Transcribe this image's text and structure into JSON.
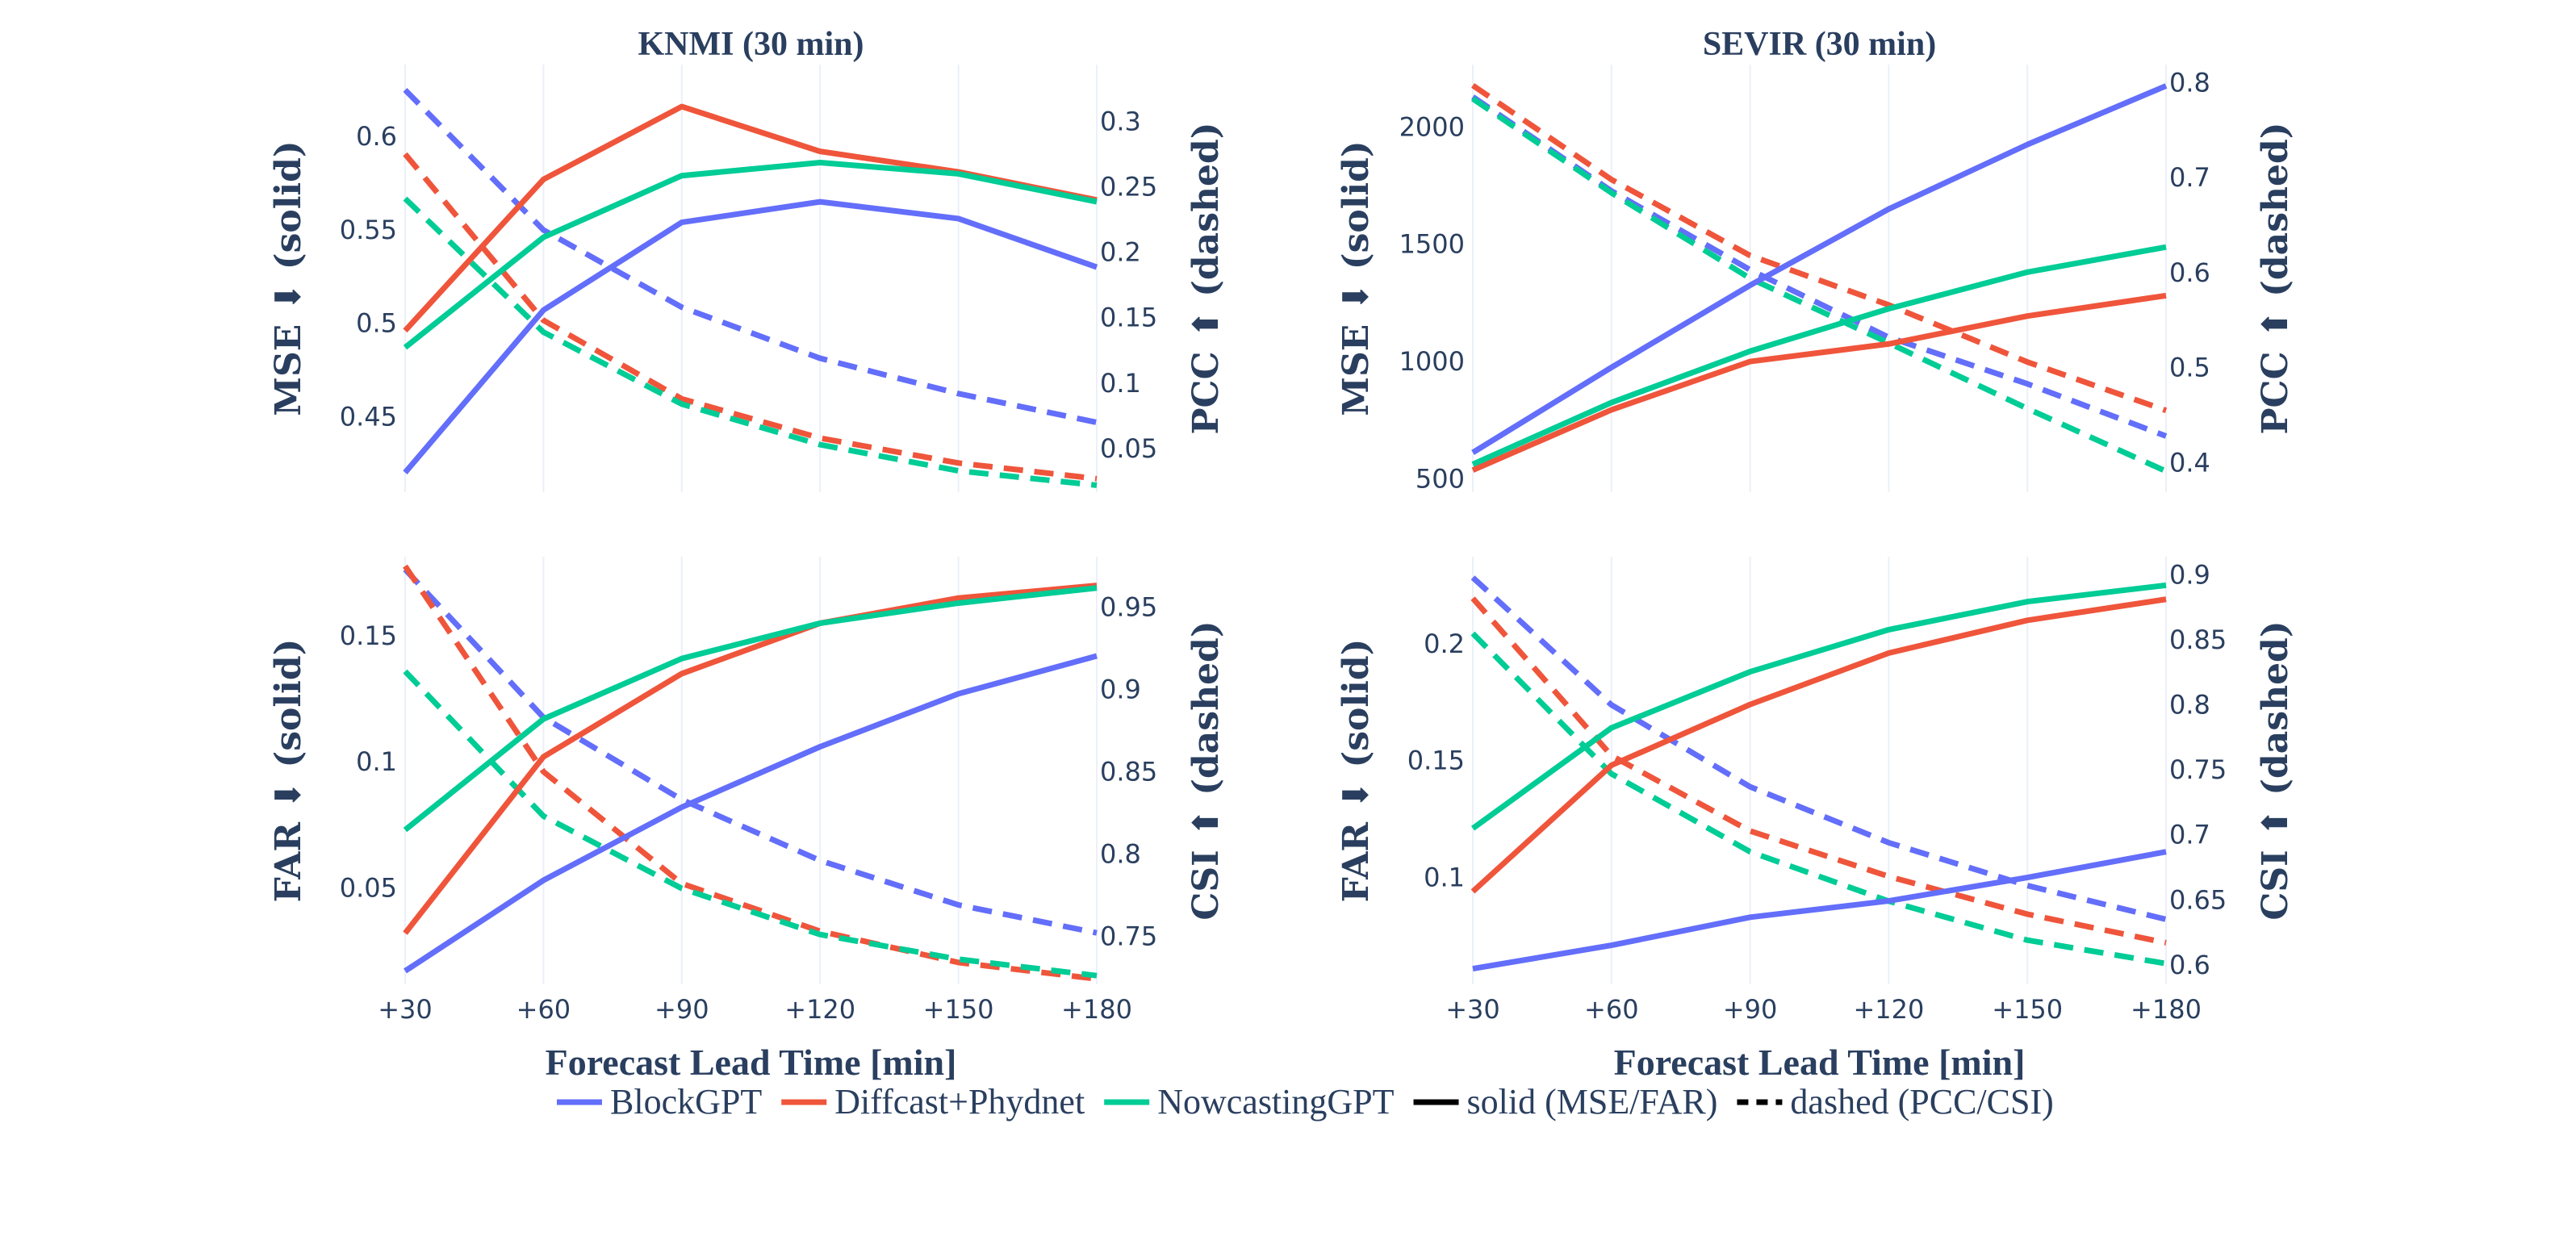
{
  "chart_data": [
    {
      "type": "line",
      "panel": "top-left",
      "title": "KNMI (30 min)",
      "xlabel": "Forecast Lead Time [min]",
      "x": [
        "+30",
        "+60",
        "+90",
        "+120",
        "+150",
        "+180"
      ],
      "ylabel_left": "MSE ⬇ (solid)",
      "ylabel_right": "PCC ⬆ (dashed)",
      "left_ticks": [
        0.45,
        0.5,
        0.55,
        0.6
      ],
      "left_tick_labels": [
        "0.45",
        "0.5",
        "0.55",
        "0.6"
      ],
      "right_ticks": [
        0.05,
        0.1,
        0.15,
        0.2,
        0.25,
        0.3
      ],
      "right_tick_labels": [
        "0.05",
        "0.1",
        "0.15",
        "0.2",
        "0.25",
        "0.3"
      ],
      "ylim_left": [
        0.4095,
        0.6385
      ],
      "ylim_right": [
        0.0167,
        0.3434
      ],
      "series_solid": [
        {
          "name": "BlockGPT",
          "values": [
            0.42,
            0.507,
            0.554,
            0.565,
            0.556,
            0.53
          ]
        },
        {
          "name": "Diffcast+Phydnet",
          "values": [
            0.496,
            0.577,
            0.616,
            0.592,
            0.581,
            0.566
          ]
        },
        {
          "name": "NowcastingGPT",
          "values": [
            0.487,
            0.546,
            0.579,
            0.586,
            0.58,
            0.565
          ]
        }
      ],
      "series_dashed": [
        {
          "name": "BlockGPT",
          "values": [
            0.324,
            0.217,
            0.158,
            0.119,
            0.092,
            0.07
          ]
        },
        {
          "name": "Diffcast+Phydnet",
          "values": [
            0.275,
            0.148,
            0.088,
            0.058,
            0.039,
            0.027
          ]
        },
        {
          "name": "NowcastingGPT",
          "values": [
            0.241,
            0.139,
            0.084,
            0.053,
            0.033,
            0.022
          ]
        }
      ]
    },
    {
      "type": "line",
      "panel": "top-right",
      "title": "SEVIR (30 min)",
      "xlabel": "Forecast Lead Time [min]",
      "x": [
        "+30",
        "+60",
        "+90",
        "+120",
        "+150",
        "+180"
      ],
      "ylabel_left": "MSE ⬇ (solid)",
      "ylabel_right": "PCC ⬆ (dashed)",
      "left_ticks": [
        500,
        1000,
        1500,
        2000
      ],
      "left_tick_labels": [
        "500",
        "1000",
        "1500",
        "2000"
      ],
      "right_ticks": [
        0.4,
        0.5,
        0.6,
        0.7,
        0.8
      ],
      "right_tick_labels": [
        "0.4",
        "0.5",
        "0.6",
        "0.7",
        "0.8"
      ],
      "ylim_left": [
        443,
        2266
      ],
      "ylim_right": [
        0.369,
        0.819
      ],
      "series_solid": [
        {
          "name": "BlockGPT",
          "values": [
            612,
            975,
            1325,
            1650,
            1925,
            2175
          ]
        },
        {
          "name": "Diffcast+Phydnet",
          "values": [
            537,
            794,
            1000,
            1075,
            1194,
            1281
          ]
        },
        {
          "name": "NowcastingGPT",
          "values": [
            562,
            825,
            1044,
            1225,
            1381,
            1488
          ]
        }
      ],
      "series_dashed": [
        {
          "name": "BlockGPT",
          "values": [
            0.785,
            0.686,
            0.603,
            0.532,
            0.483,
            0.428
          ]
        },
        {
          "name": "Diffcast+Phydnet",
          "values": [
            0.797,
            0.698,
            0.618,
            0.566,
            0.506,
            0.455
          ]
        },
        {
          "name": "NowcastingGPT",
          "values": [
            0.783,
            0.684,
            0.594,
            0.526,
            0.457,
            0.391
          ]
        }
      ]
    },
    {
      "type": "line",
      "panel": "bottom-left",
      "title": "",
      "xlabel": "Forecast Lead Time [min]",
      "x": [
        "+30",
        "+60",
        "+90",
        "+120",
        "+150",
        "+180"
      ],
      "ylabel_left": "FAR ⬇ (solid)",
      "ylabel_right": "CSI ⬆ (dashed)",
      "left_ticks": [
        0.05,
        0.1,
        0.15
      ],
      "left_tick_labels": [
        "0.05",
        "0.1",
        "0.15"
      ],
      "right_ticks": [
        0.75,
        0.8,
        0.85,
        0.9,
        0.95
      ],
      "right_tick_labels": [
        "0.75",
        "0.8",
        "0.85",
        "0.9",
        "0.95"
      ],
      "ylim_left": [
        0.0117,
        0.1814
      ],
      "ylim_right": [
        0.7207,
        0.9807
      ],
      "series_solid": [
        {
          "name": "BlockGPT",
          "values": [
            0.017,
            0.053,
            0.082,
            0.106,
            0.127,
            0.142
          ]
        },
        {
          "name": "Diffcast+Phydnet",
          "values": [
            0.032,
            0.102,
            0.135,
            0.155,
            0.165,
            0.17
          ]
        },
        {
          "name": "NowcastingGPT",
          "values": [
            0.073,
            0.117,
            0.141,
            0.155,
            0.163,
            0.169
          ]
        }
      ],
      "series_dashed": [
        {
          "name": "BlockGPT",
          "values": [
            0.973,
            0.883,
            0.833,
            0.796,
            0.769,
            0.752
          ]
        },
        {
          "name": "Diffcast+Phydnet",
          "values": [
            0.975,
            0.85,
            0.782,
            0.753,
            0.734,
            0.724
          ]
        },
        {
          "name": "NowcastingGPT",
          "values": [
            0.911,
            0.823,
            0.779,
            0.751,
            0.736,
            0.726
          ]
        }
      ]
    },
    {
      "type": "line",
      "panel": "bottom-right",
      "title": "",
      "xlabel": "Forecast Lead Time [min]",
      "x": [
        "+30",
        "+60",
        "+90",
        "+120",
        "+150",
        "+180"
      ],
      "ylabel_left": "FAR ⬇ (solid)",
      "ylabel_right": "CSI ⬆ (dashed)",
      "left_ticks": [
        0.1,
        0.15,
        0.2
      ],
      "left_tick_labels": [
        "0.1",
        "0.15",
        "0.2"
      ],
      "right_ticks": [
        0.6,
        0.65,
        0.7,
        0.75,
        0.8,
        0.85,
        0.9
      ],
      "right_tick_labels": [
        "0.6",
        "0.65",
        "0.7",
        "0.75",
        "0.8",
        "0.85",
        "0.9"
      ],
      "ylim_left": [
        0.0543,
        0.2372
      ],
      "ylim_right": [
        0.585,
        0.914
      ],
      "series_solid": [
        {
          "name": "BlockGPT",
          "values": [
            0.061,
            0.071,
            0.083,
            0.09,
            0.1,
            0.111
          ]
        },
        {
          "name": "Diffcast+Phydnet",
          "values": [
            0.094,
            0.148,
            0.174,
            0.196,
            0.21,
            0.219
          ]
        },
        {
          "name": "NowcastingGPT",
          "values": [
            0.121,
            0.164,
            0.188,
            0.206,
            0.218,
            0.225
          ]
        }
      ],
      "series_dashed": [
        {
          "name": "BlockGPT",
          "values": [
            0.898,
            0.8,
            0.737,
            0.694,
            0.661,
            0.635
          ]
        },
        {
          "name": "Diffcast+Phydnet",
          "values": [
            0.882,
            0.761,
            0.703,
            0.668,
            0.639,
            0.617
          ]
        },
        {
          "name": "NowcastingGPT",
          "values": [
            0.855,
            0.747,
            0.687,
            0.649,
            0.619,
            0.601
          ]
        }
      ]
    }
  ],
  "colors": {
    "BlockGPT": "#636efa",
    "Diffcast+Phydnet": "#ef553b",
    "NowcastingGPT": "#00cc96",
    "text": "#2a3f5f",
    "grid": "#ebf0f8"
  },
  "legend": {
    "position": "bottom-center",
    "items": [
      {
        "label": "BlockGPT",
        "style": "solid",
        "color": "#636efa"
      },
      {
        "label": "Diffcast+Phydnet",
        "style": "solid",
        "color": "#ef553b"
      },
      {
        "label": "NowcastingGPT",
        "style": "solid",
        "color": "#00cc96"
      },
      {
        "label": "solid (MSE/FAR)",
        "style": "solid",
        "color": "#000000"
      },
      {
        "label": "dashed (PCC/CSI)",
        "style": "dashed",
        "color": "#000000"
      }
    ]
  }
}
